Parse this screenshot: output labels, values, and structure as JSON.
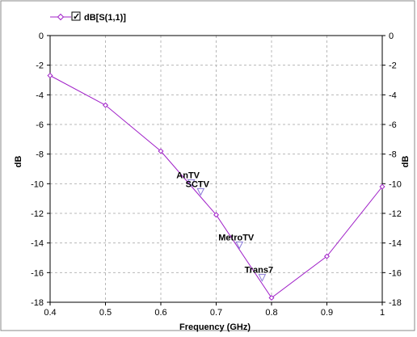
{
  "colors": {
    "series": "#a020c8",
    "marker": "#8a7ad8",
    "grid": "#b8b8b8",
    "frame": "#000000",
    "background": "#ffffff"
  },
  "chart_data": {
    "type": "line",
    "title": "",
    "xlabel": "Frequency (GHz)",
    "ylabel": "dB",
    "ylabel_right": "dB",
    "xlim": [
      0.4,
      1.0
    ],
    "ylim": [
      -18,
      0
    ],
    "x_ticks": [
      "0.4",
      "0.5",
      "0.6",
      "0.7",
      "0.8",
      "0.9",
      "1"
    ],
    "y_ticks": [
      "0",
      "-2",
      "-4",
      "-6",
      "-8",
      "-10",
      "-12",
      "-14",
      "-16",
      "-18"
    ],
    "grid": true,
    "legend_position": "top-left",
    "legend_checked": true,
    "series": [
      {
        "name": "dB[S(1,1)]",
        "x": [
          0.4,
          0.5,
          0.6,
          0.7,
          0.8,
          0.9,
          1.0
        ],
        "y": [
          -2.7,
          -4.7,
          -7.8,
          -12.1,
          -17.7,
          -14.9,
          -10.2
        ]
      }
    ],
    "markers": [
      {
        "label": "AnTV",
        "x": 0.655,
        "y": -10.0
      },
      {
        "label": "SCTV",
        "x": 0.672,
        "y": -10.6
      },
      {
        "label": "MetroTV",
        "x": 0.742,
        "y": -14.2
      },
      {
        "label": "Trans7",
        "x": 0.783,
        "y": -16.4
      }
    ]
  }
}
